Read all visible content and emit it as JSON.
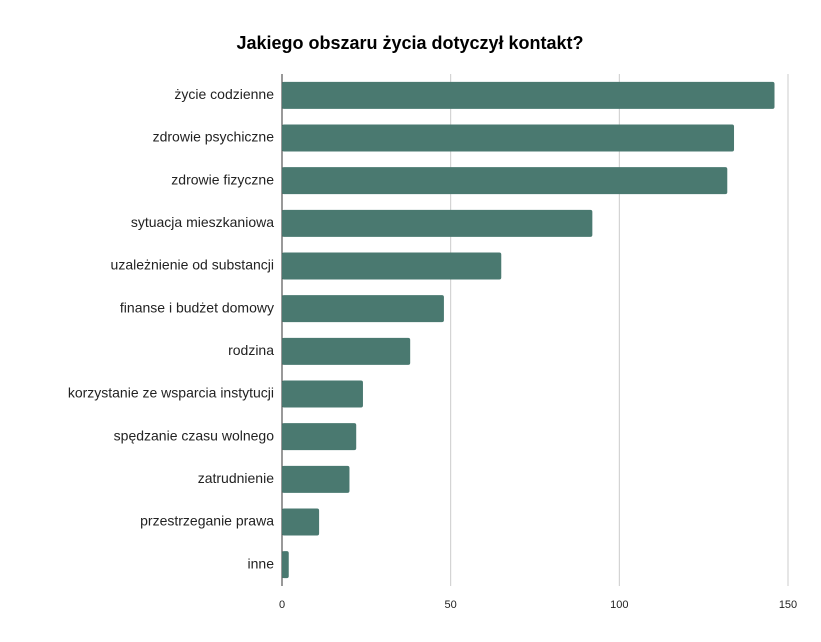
{
  "chart_data": {
    "type": "bar",
    "orientation": "horizontal",
    "title": "Jakiego obszaru życia dotyczył kontakt?",
    "categories": [
      "życie codzienne",
      "zdrowie psychiczne",
      "zdrowie fizyczne",
      "sytuacja mieszkaniowa",
      "uzależnienie od substancji",
      "finanse i budżet domowy",
      "rodzina",
      "korzystanie ze wsparcia instytucji",
      "spędzanie czasu wolnego",
      "zatrudnienie",
      "przestrzeganie prawa",
      "inne"
    ],
    "values": [
      146,
      134,
      132,
      92,
      65,
      48,
      38,
      24,
      22,
      20,
      11,
      2
    ],
    "color": "#4a7970",
    "xlim": [
      0,
      150
    ],
    "xticks": [
      0,
      50,
      100,
      150
    ],
    "grid": true
  }
}
